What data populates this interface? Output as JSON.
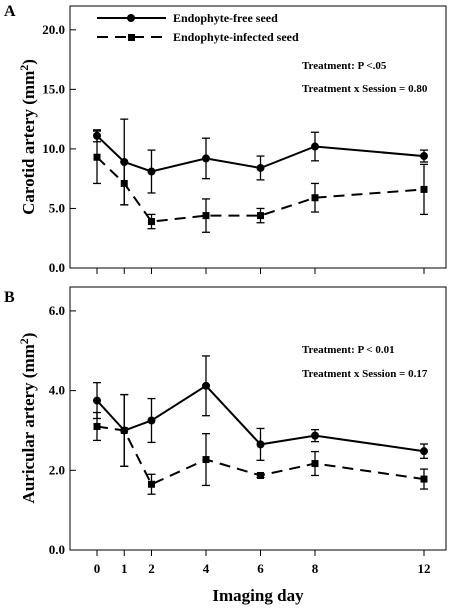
{
  "figure": {
    "x_axis_title": "Imaging day",
    "x_ticks": [
      0,
      1,
      2,
      4,
      6,
      8,
      12
    ]
  },
  "legend": {
    "items": [
      {
        "label": "Endophyte-free seed",
        "style": "solid",
        "marker": "circle"
      },
      {
        "label": "Endophyte-infected seed",
        "style": "dashed",
        "marker": "square"
      }
    ]
  },
  "chart_data": [
    {
      "type": "line",
      "panel": "A",
      "title": "",
      "ylabel": "Carotid artery (mm²)",
      "ylabel_main": "Carotid artery (mm",
      "ylabel_sup": "2",
      "ylabel_tail": ")",
      "xlabel": "Imaging day",
      "ylim": [
        0,
        22
      ],
      "y_ticks": [
        0.0,
        5.0,
        10.0,
        15.0,
        20.0
      ],
      "y_tick_labels": [
        "0.0",
        "5.0",
        "10.0",
        "15.0",
        "20.0"
      ],
      "x": [
        0,
        1,
        2,
        4,
        6,
        8,
        12
      ],
      "annotations": [
        "Treatment:  P <.05",
        "Treatment x Session = 0.80"
      ],
      "series": [
        {
          "name": "Endophyte-free seed",
          "line_style": "solid",
          "marker": "circle",
          "values": [
            11.1,
            8.9,
            8.1,
            9.2,
            8.4,
            10.2,
            9.4
          ],
          "errors": [
            0.5,
            3.6,
            1.8,
            1.7,
            1.0,
            1.2,
            0.5
          ]
        },
        {
          "name": "Endophyte-infected seed",
          "line_style": "dashed",
          "marker": "square",
          "values": [
            9.3,
            7.1,
            3.9,
            4.4,
            4.4,
            5.9,
            6.6
          ],
          "errors": [
            2.2,
            1.8,
            0.6,
            1.4,
            0.6,
            1.2,
            2.1
          ]
        }
      ]
    },
    {
      "type": "line",
      "panel": "B",
      "title": "",
      "ylabel": "Auricular artery (mm²)",
      "ylabel_main": "Auricular artery (mm",
      "ylabel_sup": "2",
      "ylabel_tail": ")",
      "xlabel": "Imaging day",
      "ylim": [
        0,
        6.6
      ],
      "y_ticks": [
        0.0,
        2.0,
        4.0,
        6.0
      ],
      "y_tick_labels": [
        "0.0",
        "2.0",
        "4.0",
        "6.0"
      ],
      "x": [
        0,
        1,
        2,
        4,
        6,
        8,
        12
      ],
      "annotations": [
        "Treatment:  P < 0.01",
        "Treatment x Session = 0.17"
      ],
      "series": [
        {
          "name": "Endophyte-free seed",
          "line_style": "solid",
          "marker": "circle",
          "values": [
            3.75,
            3.0,
            3.25,
            4.12,
            2.65,
            2.87,
            2.48
          ],
          "errors": [
            0.45,
            0.9,
            0.55,
            0.75,
            0.4,
            0.15,
            0.18
          ]
        },
        {
          "name": "Endophyte-infected seed",
          "line_style": "dashed",
          "marker": "square",
          "values": [
            3.1,
            3.0,
            1.65,
            2.27,
            1.87,
            2.17,
            1.78
          ],
          "errors": [
            0.35,
            0.9,
            0.25,
            0.65,
            0.05,
            0.3,
            0.25
          ]
        }
      ]
    }
  ]
}
